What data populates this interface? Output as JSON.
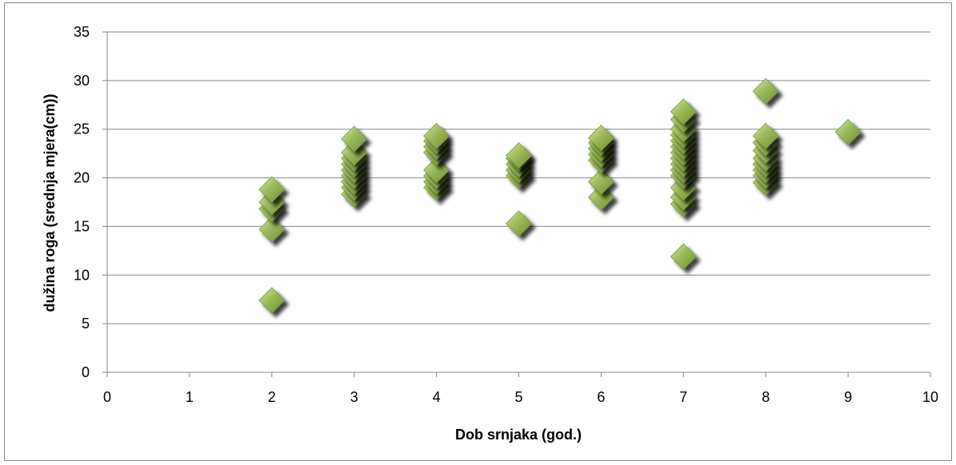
{
  "chart_data": {
    "type": "scatter",
    "title": "",
    "xlabel": "Dob srnjaka (god.)",
    "ylabel": "dužina roga (srednja mjera(cm))",
    "xlim": [
      0,
      10
    ],
    "ylim": [
      0,
      35
    ],
    "x_ticks": [
      0,
      1,
      2,
      3,
      4,
      5,
      6,
      7,
      8,
      9,
      10
    ],
    "y_ticks": [
      0,
      5,
      10,
      15,
      20,
      25,
      30,
      35
    ],
    "grid": "horizontal",
    "legend": "none",
    "marker": "diamond",
    "marker_color": "#9bbb59",
    "series": [
      {
        "points": [
          [
            2,
            7.4
          ],
          [
            2,
            14.7
          ],
          [
            2,
            16.8
          ],
          [
            2,
            17.5
          ],
          [
            2,
            18.8
          ],
          [
            3,
            18.3
          ],
          [
            3,
            19.0
          ],
          [
            3,
            19.6
          ],
          [
            3,
            20.2
          ],
          [
            3,
            20.8
          ],
          [
            3,
            21.4
          ],
          [
            3,
            22.0
          ],
          [
            3,
            22.6
          ],
          [
            3,
            24.0
          ],
          [
            4,
            19.0
          ],
          [
            4,
            19.6
          ],
          [
            4,
            20.2
          ],
          [
            4,
            20.8
          ],
          [
            4,
            22.6
          ],
          [
            4,
            23.2
          ],
          [
            4,
            23.8
          ],
          [
            4,
            24.3
          ],
          [
            5,
            15.3
          ],
          [
            5,
            20.2
          ],
          [
            5,
            20.8
          ],
          [
            5,
            21.4
          ],
          [
            5,
            22.0
          ],
          [
            5,
            22.3
          ],
          [
            6,
            18.0
          ],
          [
            6,
            19.6
          ],
          [
            6,
            21.8
          ],
          [
            6,
            22.4
          ],
          [
            6,
            23.0
          ],
          [
            6,
            23.6
          ],
          [
            6,
            24.1
          ],
          [
            7,
            11.9
          ],
          [
            7,
            17.3
          ],
          [
            7,
            18.0
          ],
          [
            7,
            19.0
          ],
          [
            7,
            20.2
          ],
          [
            7,
            20.8
          ],
          [
            7,
            21.4
          ],
          [
            7,
            22.0
          ],
          [
            7,
            22.6
          ],
          [
            7,
            23.2
          ],
          [
            7,
            23.8
          ],
          [
            7,
            24.4
          ],
          [
            7,
            25.0
          ],
          [
            7,
            26.0
          ],
          [
            7,
            26.8
          ],
          [
            8,
            19.5
          ],
          [
            8,
            20.2
          ],
          [
            8,
            20.8
          ],
          [
            8,
            21.4
          ],
          [
            8,
            22.0
          ],
          [
            8,
            22.8
          ],
          [
            8,
            23.6
          ],
          [
            8,
            24.3
          ],
          [
            8,
            28.9
          ],
          [
            9,
            24.7
          ]
        ]
      }
    ]
  }
}
